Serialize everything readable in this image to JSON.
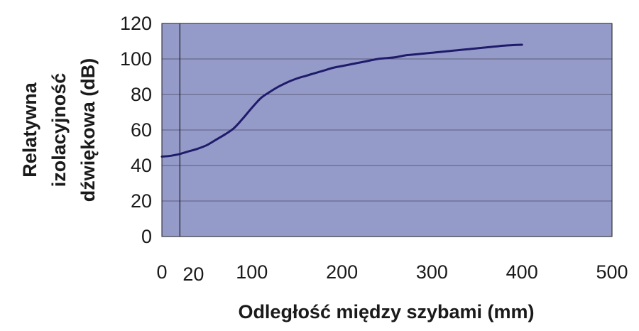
{
  "chart_data": {
    "type": "line",
    "xlabel": "Odległość między szybami (mm)",
    "ylabel_lines": [
      "Relatywna",
      "izolacyjność",
      "dźwiękowa (dB)"
    ],
    "xlim": [
      0,
      500
    ],
    "ylim": [
      0,
      120
    ],
    "x_ticks": [
      0,
      100,
      200,
      300,
      400,
      500
    ],
    "x_tick_labels": [
      "0",
      "100",
      "200",
      "300",
      "400",
      "500"
    ],
    "x_marker": {
      "value": 20,
      "label": "20"
    },
    "y_ticks": [
      0,
      20,
      40,
      60,
      80,
      100,
      120
    ],
    "y_tick_labels": [
      "0",
      "20",
      "40",
      "60",
      "80",
      "100",
      "120"
    ],
    "grid": true,
    "series": [
      {
        "x": [
          0,
          10,
          20,
          30,
          40,
          50,
          60,
          70,
          80,
          90,
          100,
          110,
          120,
          130,
          140,
          150,
          160,
          170,
          180,
          190,
          200,
          210,
          220,
          230,
          240,
          250,
          260,
          270,
          280,
          290,
          300,
          310,
          320,
          330,
          340,
          350,
          360,
          370,
          380,
          390,
          400
        ],
        "values": [
          45,
          45.5,
          46.5,
          48,
          49.5,
          51.5,
          54.5,
          57.5,
          61,
          66.5,
          72.5,
          78,
          81.5,
          84.5,
          87,
          89,
          90.5,
          92,
          93.5,
          95,
          96,
          97,
          98,
          99,
          100,
          100.5,
          101,
          102,
          102.5,
          103,
          103.5,
          104,
          104.5,
          105,
          105.5,
          106,
          106.5,
          107,
          107.5,
          107.8,
          108
        ]
      }
    ],
    "colors": {
      "plot_bg": "#959bc9",
      "line": "#1f1b6b",
      "grid": "#5c5c7a",
      "axis": "#1a1a1a"
    }
  }
}
